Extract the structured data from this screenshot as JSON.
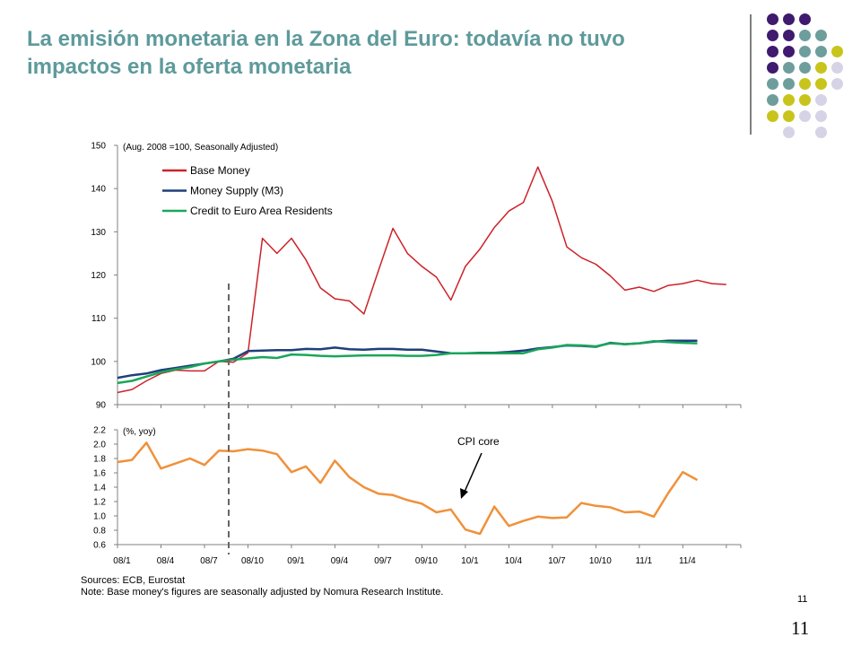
{
  "slide": {
    "title": "La emisión monetaria en la Zona del Euro: todavía no tuvo impactos en la oferta monetaria",
    "sources": "Sources: ECB, Eurostat",
    "note": "Note: Base money's figures are seasonally adjusted by Nomura Research Institute.",
    "page_number_small": "11",
    "page_number_large": "11",
    "decoration": {
      "dot_colors": {
        "purple": "#3f1a6e",
        "teal": "#6d9e9b",
        "olive": "#c8c41c",
        "lavender": "#d7d3e6"
      }
    }
  },
  "chart_data": [
    {
      "type": "line",
      "title": "",
      "annotation": "(Aug. 2008 =100, Seasonally Adjusted)",
      "ylim": [
        90,
        150
      ],
      "yticks": [
        90,
        100,
        110,
        120,
        130,
        140,
        150
      ],
      "xlim": [
        "2008-01",
        "2011-08"
      ],
      "legend_position": "top-left",
      "grid": false,
      "series": [
        {
          "name": "Base Money",
          "color": "#cc2229",
          "x": [
            "2008-01",
            "2008-02",
            "2008-03",
            "2008-04",
            "2008-05",
            "2008-06",
            "2008-07",
            "2008-08",
            "2008-09",
            "2008-10",
            "2008-11",
            "2008-12",
            "2009-01",
            "2009-02",
            "2009-03",
            "2009-04",
            "2009-05",
            "2009-06",
            "2009-07",
            "2009-08",
            "2009-09",
            "2009-10",
            "2009-11",
            "2009-12",
            "2010-01",
            "2010-02",
            "2010-03",
            "2010-04",
            "2010-05",
            "2010-06",
            "2010-07",
            "2010-08",
            "2010-09",
            "2010-10",
            "2010-11",
            "2010-12",
            "2011-01",
            "2011-02",
            "2011-03",
            "2011-04",
            "2011-05",
            "2011-06",
            "2011-07"
          ],
          "values": [
            92.8,
            93.5,
            95.5,
            97.2,
            98.0,
            97.8,
            97.8,
            100.0,
            99.8,
            102.0,
            128.5,
            125.0,
            128.5,
            123.5,
            117.0,
            114.5,
            114.0,
            111.0,
            121.0,
            130.8,
            125.0,
            122.0,
            119.5,
            114.2,
            122.0,
            126.0,
            131.0,
            134.8,
            136.8,
            145.0,
            137.0,
            126.5,
            124.0,
            122.5,
            119.8,
            116.5,
            117.2,
            116.2,
            117.6,
            118.0,
            118.8,
            118.0,
            117.8
          ]
        },
        {
          "name": "Money Supply (M3)",
          "color": "#1f3f7a",
          "x": [
            "2008-01",
            "2008-02",
            "2008-03",
            "2008-04",
            "2008-05",
            "2008-06",
            "2008-07",
            "2008-08",
            "2008-09",
            "2008-10",
            "2008-11",
            "2008-12",
            "2009-01",
            "2009-02",
            "2009-03",
            "2009-04",
            "2009-05",
            "2009-06",
            "2009-07",
            "2009-08",
            "2009-09",
            "2009-10",
            "2009-11",
            "2009-12",
            "2010-01",
            "2010-02",
            "2010-03",
            "2010-04",
            "2010-05",
            "2010-06",
            "2010-07",
            "2010-08",
            "2010-09",
            "2010-10",
            "2010-11",
            "2010-12",
            "2011-01",
            "2011-02",
            "2011-03",
            "2011-04",
            "2011-05"
          ],
          "values": [
            96.2,
            96.8,
            97.2,
            98.0,
            98.5,
            99.0,
            99.5,
            100.0,
            100.6,
            102.4,
            102.5,
            102.6,
            102.6,
            102.9,
            102.8,
            103.2,
            102.8,
            102.7,
            102.9,
            102.9,
            102.7,
            102.7,
            102.3,
            101.9,
            101.9,
            102.0,
            102.0,
            102.2,
            102.5,
            103.0,
            103.3,
            103.7,
            103.6,
            103.4,
            104.3,
            104.0,
            104.2,
            104.6,
            104.8,
            104.8,
            104.8
          ]
        },
        {
          "name": "Credit to Euro Area Residents",
          "color": "#1aa65a",
          "x": [
            "2008-01",
            "2008-02",
            "2008-03",
            "2008-04",
            "2008-05",
            "2008-06",
            "2008-07",
            "2008-08",
            "2008-09",
            "2008-10",
            "2008-11",
            "2008-12",
            "2009-01",
            "2009-02",
            "2009-03",
            "2009-04",
            "2009-05",
            "2009-06",
            "2009-07",
            "2009-08",
            "2009-09",
            "2009-10",
            "2009-11",
            "2009-12",
            "2010-01",
            "2010-02",
            "2010-03",
            "2010-04",
            "2010-05",
            "2010-06",
            "2010-07",
            "2010-08",
            "2010-09",
            "2010-10",
            "2010-11",
            "2010-12",
            "2011-01",
            "2011-02",
            "2011-03",
            "2011-04",
            "2011-05"
          ],
          "values": [
            95.0,
            95.5,
            96.5,
            97.5,
            98.2,
            98.7,
            99.5,
            100.0,
            100.4,
            100.7,
            101.0,
            100.8,
            101.6,
            101.5,
            101.3,
            101.2,
            101.3,
            101.4,
            101.4,
            101.4,
            101.3,
            101.3,
            101.5,
            101.9,
            101.9,
            101.9,
            101.9,
            101.9,
            101.9,
            102.8,
            103.2,
            103.8,
            103.7,
            103.5,
            104.2,
            104.0,
            104.2,
            104.7,
            104.5,
            104.3,
            104.2
          ]
        }
      ]
    },
    {
      "type": "line",
      "title": "",
      "annotation": "(%, yoy)",
      "ylim": [
        0.6,
        2.2
      ],
      "yticks": [
        "0.6",
        "0.8",
        "1.0",
        "1.2",
        "1.4",
        "1.6",
        "1.8",
        "2.0",
        "2.2"
      ],
      "xlim": [
        "2008-01",
        "2011-08"
      ],
      "xtick_labels": [
        "08/1",
        "08/4",
        "08/7",
        "08/10",
        "09/1",
        "09/4",
        "09/7",
        "09/10",
        "10/1",
        "10/4",
        "10/7",
        "10/10",
        "11/1",
        "11/4"
      ],
      "callout": "CPI core",
      "grid": false,
      "series": [
        {
          "name": "CPI core",
          "color": "#f0913b",
          "x": [
            "2008-01",
            "2008-02",
            "2008-03",
            "2008-04",
            "2008-05",
            "2008-06",
            "2008-07",
            "2008-08",
            "2008-09",
            "2008-10",
            "2008-11",
            "2008-12",
            "2009-01",
            "2009-02",
            "2009-03",
            "2009-04",
            "2009-05",
            "2009-06",
            "2009-07",
            "2009-08",
            "2009-09",
            "2009-10",
            "2009-11",
            "2009-12",
            "2010-01",
            "2010-02",
            "2010-03",
            "2010-04",
            "2010-05",
            "2010-06",
            "2010-07",
            "2010-08",
            "2010-09",
            "2010-10",
            "2010-11",
            "2010-12",
            "2011-01",
            "2011-02",
            "2011-03",
            "2011-04",
            "2011-05"
          ],
          "values": [
            1.75,
            1.78,
            2.02,
            1.66,
            1.73,
            1.8,
            1.71,
            1.91,
            1.9,
            1.93,
            1.91,
            1.86,
            1.61,
            1.69,
            1.46,
            1.77,
            1.54,
            1.4,
            1.31,
            1.29,
            1.22,
            1.17,
            1.05,
            1.09,
            0.81,
            0.75,
            1.13,
            0.86,
            0.93,
            0.99,
            0.97,
            0.98,
            1.18,
            1.14,
            1.12,
            1.05,
            1.06,
            0.99,
            1.32,
            1.61,
            1.5
          ]
        }
      ]
    }
  ]
}
